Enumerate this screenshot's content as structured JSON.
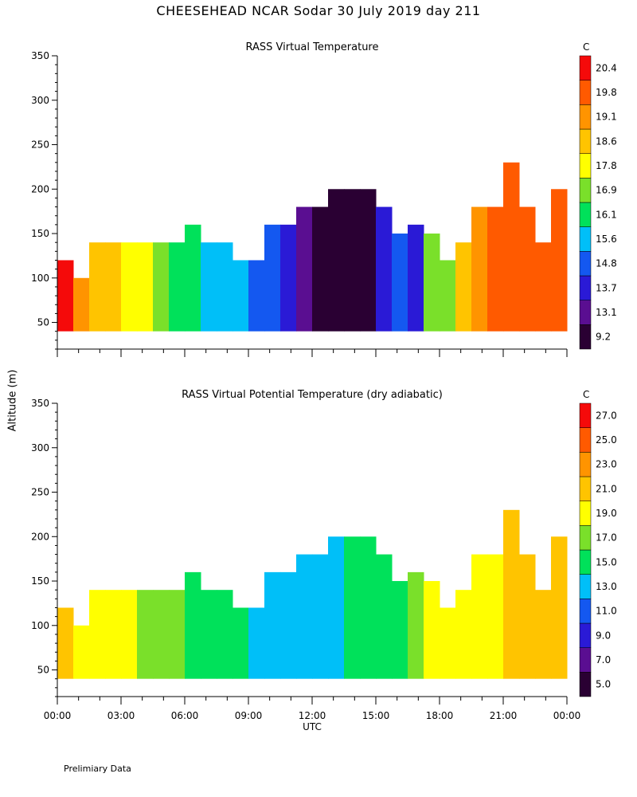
{
  "title": "CHEESEHEAD   NCAR Sodar   30 July 2019   day 211",
  "y_axis_label": "Altitude (m)",
  "x_axis_label": "UTC",
  "footnote": "Prelimiary Data",
  "colors": [
    "#2a0033",
    "#5a0e91",
    "#2a1ad6",
    "#1458f0",
    "#00bff8",
    "#00e15a",
    "#7ae02a",
    "#ffff00",
    "#ffc400",
    "#ff9400",
    "#ff5a00",
    "#f50a0a"
  ],
  "chart_data": [
    {
      "type": "heatmap",
      "title": "RASS Virtual Temperature",
      "unit": "C",
      "x_ticks": [
        "00:00",
        "03:00",
        "06:00",
        "09:00",
        "12:00",
        "15:00",
        "18:00",
        "21:00",
        "00:00"
      ],
      "y_ticks": [
        50,
        100,
        150,
        200,
        250,
        300,
        350
      ],
      "ylim": [
        20,
        350
      ],
      "xlim_hours": [
        0,
        24
      ],
      "colorbar_labels": [
        "9.2",
        "13.1",
        "13.7",
        "14.8",
        "15.6",
        "16.1",
        "16.9",
        "17.8",
        "18.6",
        "19.1",
        "19.8",
        "20.4"
      ],
      "color_by_hour": [
        11,
        9,
        8,
        8,
        7,
        7,
        6,
        5,
        5,
        4,
        4,
        4,
        3,
        3,
        2,
        1,
        0,
        0,
        0,
        0,
        2,
        3,
        2,
        6,
        6,
        8,
        9,
        10,
        10,
        10,
        10,
        10
      ],
      "top_by_hour": [
        120,
        100,
        140,
        140,
        140,
        140,
        140,
        140,
        160,
        140,
        140,
        120,
        120,
        160,
        160,
        180,
        180,
        200,
        200,
        200,
        180,
        150,
        160,
        150,
        120,
        140,
        180,
        180,
        230,
        180,
        140,
        200
      ]
    },
    {
      "type": "heatmap",
      "title": "RASS Virtual Potential Temperature (dry adiabatic)",
      "unit": "C",
      "x_ticks": [
        "00:00",
        "03:00",
        "06:00",
        "09:00",
        "12:00",
        "15:00",
        "18:00",
        "21:00",
        "00:00"
      ],
      "y_ticks": [
        50,
        100,
        150,
        200,
        250,
        300,
        350
      ],
      "ylim": [
        20,
        350
      ],
      "xlim_hours": [
        0,
        24
      ],
      "colorbar_labels": [
        "5.0",
        "7.0",
        "9.0",
        "11.0",
        "13.0",
        "15.0",
        "17.0",
        "19.0",
        "21.0",
        "23.0",
        "25.0",
        "27.0"
      ],
      "color_by_hour": [
        8,
        7,
        7,
        7,
        7,
        6,
        6,
        6,
        5,
        5,
        5,
        5,
        4,
        4,
        4,
        4,
        4,
        4,
        5,
        5,
        5,
        5,
        6,
        7,
        7,
        7,
        7,
        7,
        8,
        8,
        8,
        8
      ],
      "top_by_hour": [
        120,
        100,
        140,
        140,
        140,
        140,
        140,
        140,
        160,
        140,
        140,
        120,
        120,
        160,
        160,
        180,
        180,
        200,
        200,
        200,
        180,
        150,
        160,
        150,
        120,
        140,
        180,
        180,
        230,
        180,
        140,
        200
      ]
    }
  ]
}
